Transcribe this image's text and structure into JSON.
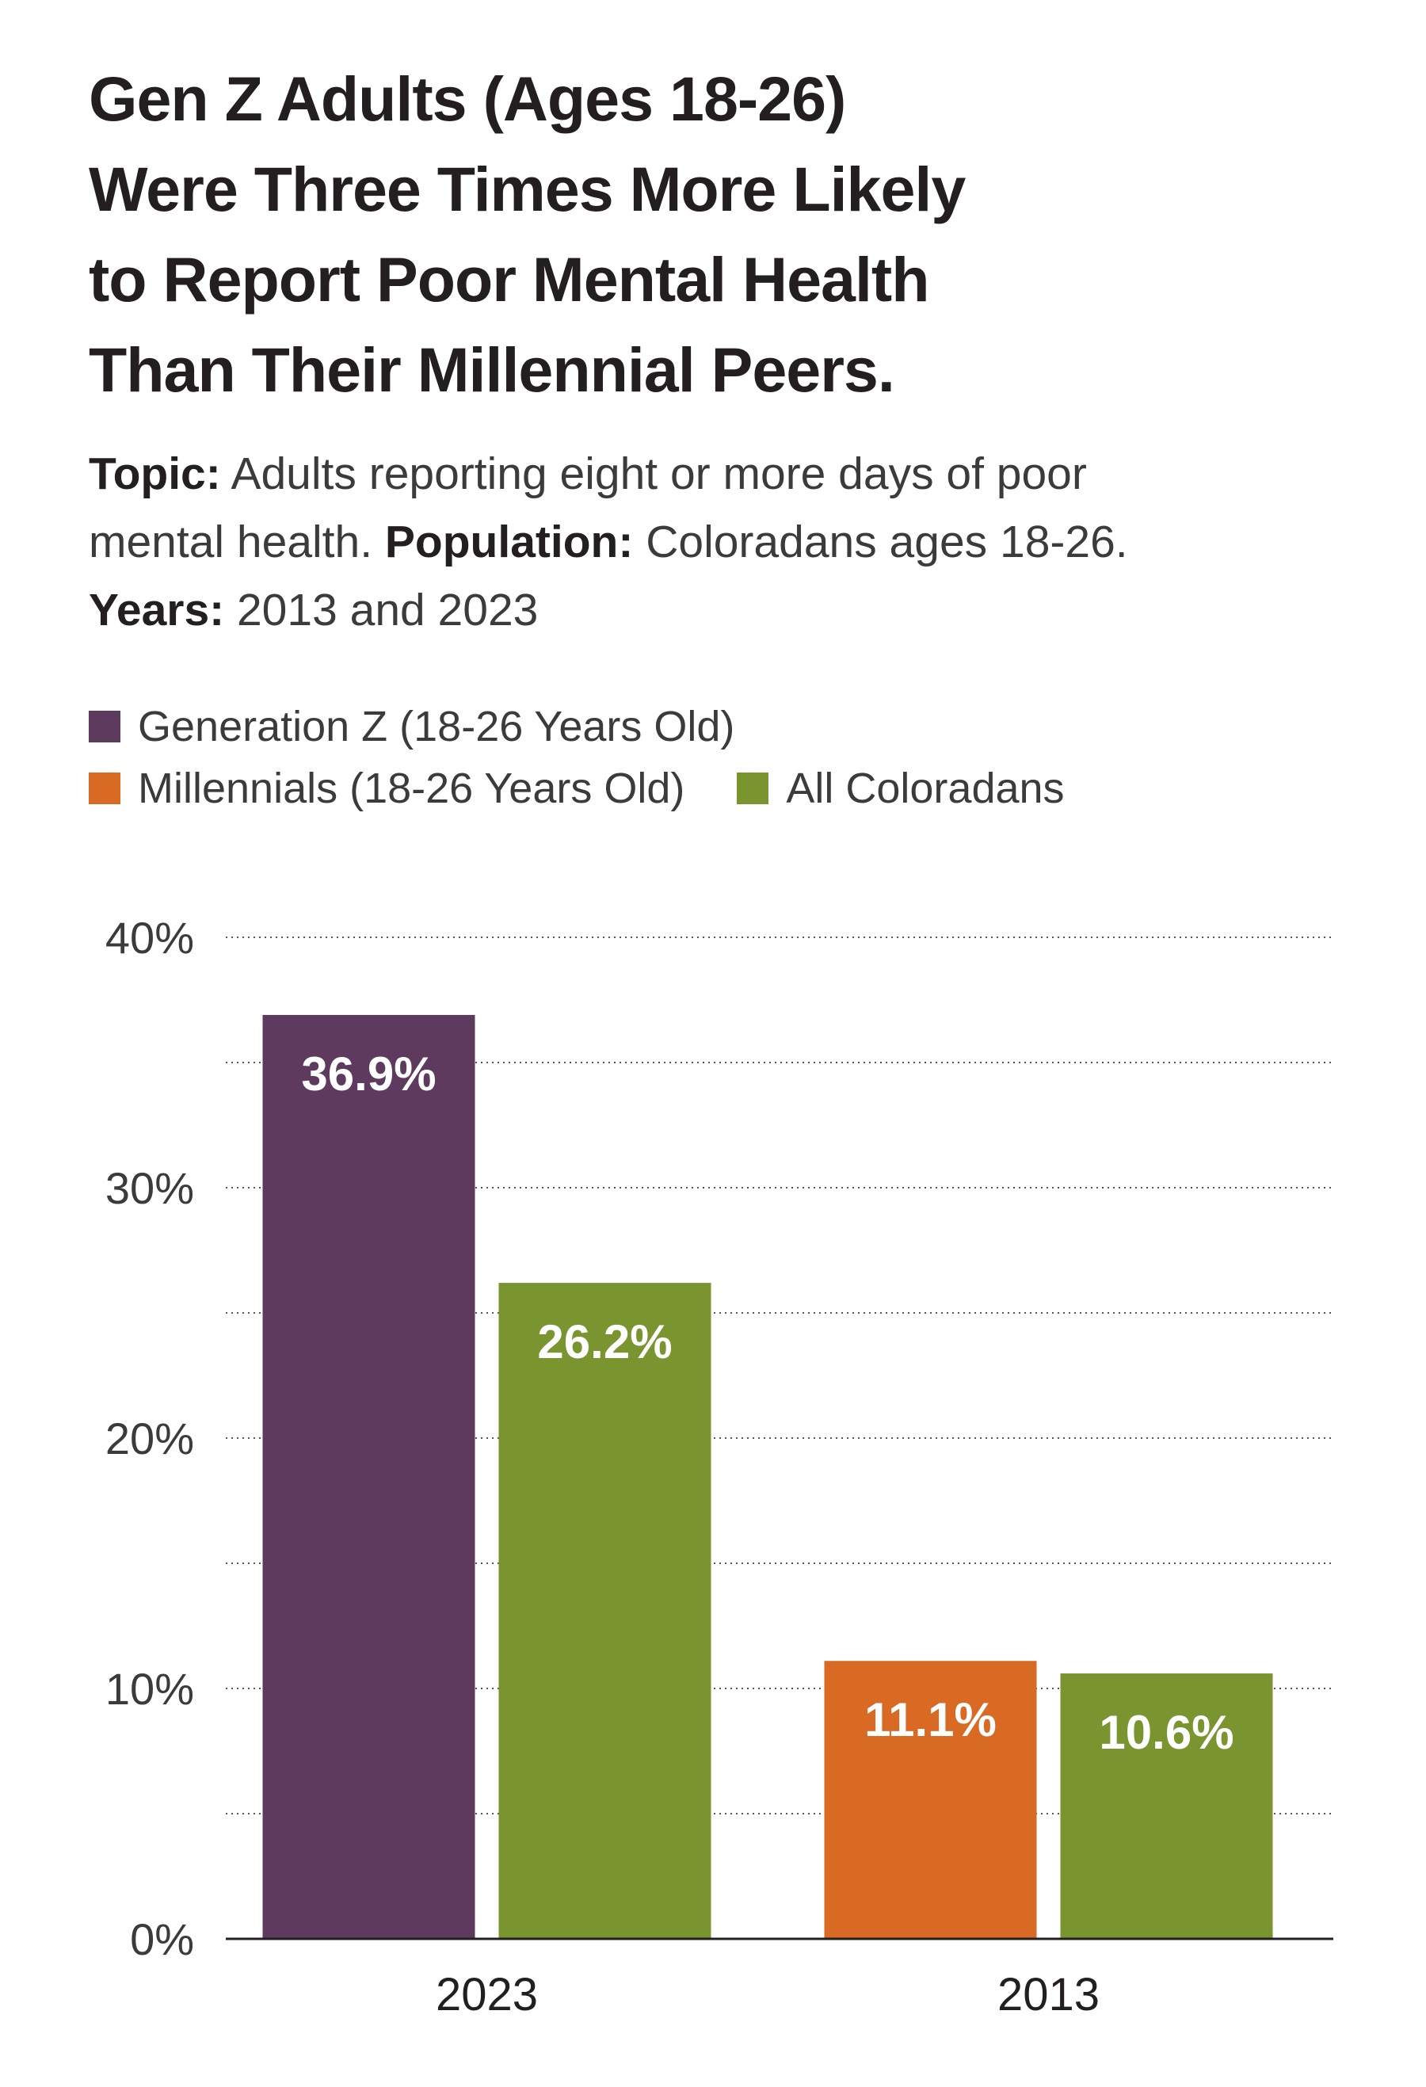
{
  "title_lines": [
    "Gen Z Adults (Ages 18-26)",
    "Were Three Times More Likely",
    "to Report Poor Mental Health",
    "Than Their Millennial Peers."
  ],
  "subtitle": {
    "topic_label": "Topic:",
    "topic_text": "Adults reporting eight or more days of poor",
    "topic_text_2": "mental health.",
    "population_label": "Population:",
    "population_text": "Coloradans ages 18-26.",
    "years_label": "Years:",
    "years_text": "2013 and 2023"
  },
  "legend": [
    {
      "label": "Generation Z (18-26 Years Old)",
      "color": "#5e3a5f"
    },
    {
      "label": "Millennials (18-26 Years Old)",
      "color": "#d86a23"
    },
    {
      "label": "All Coloradans",
      "color": "#7a9530"
    }
  ],
  "chart_data": {
    "type": "bar",
    "categories": [
      "2023",
      "2013"
    ],
    "ylim": [
      0,
      40
    ],
    "yticks": [
      0,
      10,
      20,
      30,
      40
    ],
    "ytick_labels": [
      "0%",
      "10%",
      "20%",
      "30%",
      "40%"
    ],
    "grid": "dotted horizontal, every 5%",
    "bars": [
      {
        "category": "2023",
        "series": "Generation Z (18-26 Years Old)",
        "value": 36.9,
        "label": "36.9%",
        "color": "#5e3a5f"
      },
      {
        "category": "2023",
        "series": "All Coloradans",
        "value": 26.2,
        "label": "26.2%",
        "color": "#7a9530"
      },
      {
        "category": "2013",
        "series": "Millennials (18-26 Years Old)",
        "value": 11.1,
        "label": "11.1%",
        "color": "#d86a23"
      },
      {
        "category": "2013",
        "series": "All Coloradans",
        "value": 10.6,
        "label": "10.6%",
        "color": "#7a9530"
      }
    ]
  }
}
